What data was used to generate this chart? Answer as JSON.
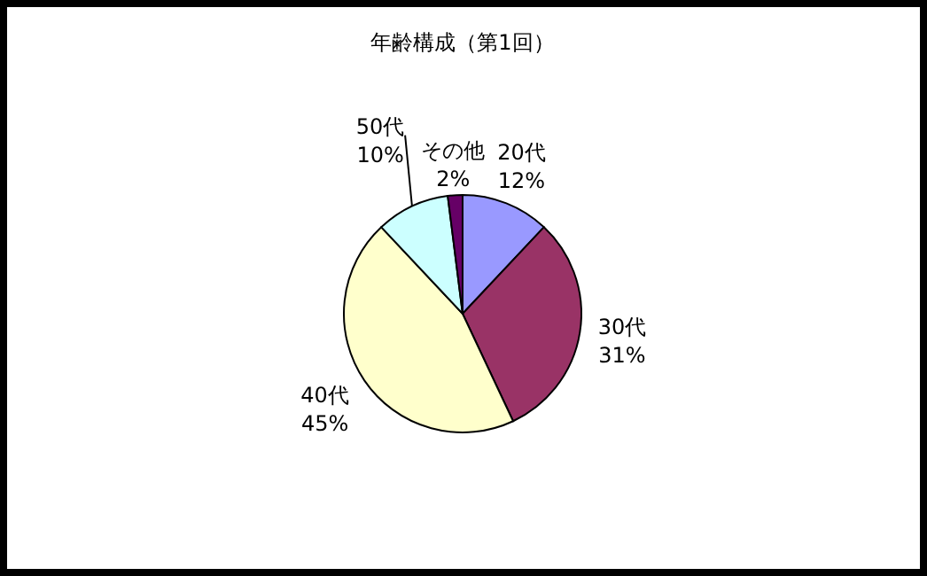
{
  "chart_data": {
    "type": "pie",
    "title": "年齢構成（第1回）",
    "categories": [
      "20代",
      "30代",
      "40代",
      "50代",
      "その他"
    ],
    "values": [
      12,
      31,
      45,
      10,
      2
    ],
    "value_labels": [
      "12%",
      "31%",
      "45%",
      "10%",
      "2%"
    ],
    "colors": [
      "#9999ff",
      "#993366",
      "#ffffcc",
      "#ccffff",
      "#660066"
    ]
  }
}
